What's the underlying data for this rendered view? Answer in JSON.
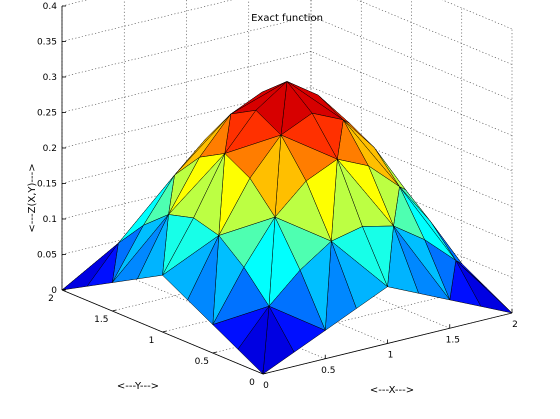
{
  "chart_data": {
    "type": "surface-3d",
    "title": "Exact function",
    "xlabel": "<---X--->",
    "ylabel": "<---Y--->",
    "zlabel": "<---Z(X,Y)--->",
    "xlim": [
      0,
      2
    ],
    "ylim": [
      0,
      2
    ],
    "zlim": [
      0,
      0.4
    ],
    "x_ticks": [
      "0",
      "0.5",
      "1",
      "1.5",
      "2"
    ],
    "y_ticks": [
      "0",
      "0.5",
      "1",
      "1.5",
      "2"
    ],
    "z_ticks": [
      "0",
      "0.05",
      "0.1",
      "0.15",
      "0.2",
      "0.25",
      "0.3",
      "0.35",
      "0.4"
    ],
    "grid": true,
    "colormap": "jet",
    "grid_x": [
      0,
      0.25,
      0.5,
      0.75,
      1,
      1.25,
      1.5,
      1.75,
      2
    ],
    "grid_y": [
      0,
      0.25,
      0.5,
      0.75,
      1,
      1.25,
      1.5,
      1.75,
      2
    ],
    "z": [
      [
        0,
        0.02,
        0.04,
        0.06,
        0.08,
        0.06,
        0.04,
        0.02,
        0
      ],
      [
        0.02,
        0.07,
        0.11,
        0.14,
        0.15,
        0.14,
        0.11,
        0.07,
        0.02
      ],
      [
        0.04,
        0.11,
        0.17,
        0.21,
        0.23,
        0.21,
        0.17,
        0.11,
        0.04
      ],
      [
        0.06,
        0.14,
        0.21,
        0.26,
        0.28,
        0.26,
        0.21,
        0.14,
        0.06
      ],
      [
        0.08,
        0.15,
        0.23,
        0.28,
        0.31,
        0.28,
        0.23,
        0.15,
        0.08
      ],
      [
        0.06,
        0.14,
        0.21,
        0.26,
        0.28,
        0.26,
        0.21,
        0.14,
        0.06
      ],
      [
        0.04,
        0.11,
        0.17,
        0.21,
        0.23,
        0.21,
        0.17,
        0.11,
        0.04
      ],
      [
        0.02,
        0.07,
        0.11,
        0.14,
        0.15,
        0.14,
        0.11,
        0.07,
        0.02
      ],
      [
        0,
        0.02,
        0.04,
        0.06,
        0.08,
        0.06,
        0.04,
        0.02,
        0
      ]
    ]
  }
}
